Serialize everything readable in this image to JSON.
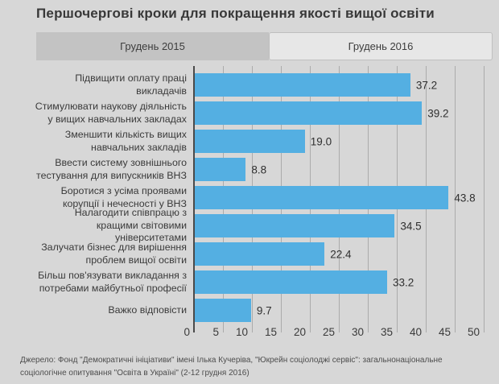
{
  "page": {
    "title": "Першочергові кроки для покращення якості вищої освіти",
    "source_note": "Джерело: Фонд \"Демократичні ініціативи\" імені Ілька Кучеріва, \"Юкрейн соціолоджі сервіс\": загальнонаціональне соціологічне опитування \"Освіта в Україні\" (2-12 грудня 2016)"
  },
  "tabs": [
    {
      "label": "Грудень 2015",
      "active": false
    },
    {
      "label": "Грудень 2016",
      "active": true
    }
  ],
  "colors": {
    "page_background": "#d7d7d7",
    "bar": "#54afe2",
    "gridline": "#ababab",
    "axis_line": "#4a4a4a",
    "tab_inactive": "#c3c3c3",
    "tab_active": "#e7e7e7",
    "text": "#3a3a3a"
  },
  "chart_data": {
    "type": "bar",
    "orientation": "horizontal",
    "title": "Першочергові кроки для покращення якості вищої освіти",
    "subtitle_tab_selected": "Грудень 2016",
    "categories": [
      "Підвищити оплату праці викладачів",
      "Стимулювати наукову діяльність у вищих навчальних закладах",
      "Зменшити кількість вищих навчальних закладів",
      "Ввести систему зовнішнього тестування для випускників ВНЗ",
      "Боротися з усіма проявами корупції і нечесності у ВНЗ",
      "Налагодити співпрацю з кращими світовими університетами",
      "Залучати бізнес для вирішення проблем вищої освіти",
      "Більш пов'язувати викладання з потребами майбутньої професії",
      "Важко відповісти"
    ],
    "values": [
      37.2,
      39.2,
      19.0,
      8.8,
      43.8,
      34.5,
      22.4,
      33.2,
      9.7
    ],
    "value_labels": [
      "37.2",
      "39.2",
      "19.0",
      "8.8",
      "43.8",
      "34.5",
      "22.4",
      "33.2",
      "9.7"
    ],
    "xlabel": "",
    "ylabel": "",
    "xlim": [
      0,
      50
    ],
    "xticks": [
      0,
      5,
      10,
      15,
      20,
      25,
      30,
      35,
      40,
      45,
      50
    ],
    "grid": "vertical",
    "legend_position": "none",
    "bar_color": "#54afe2"
  }
}
